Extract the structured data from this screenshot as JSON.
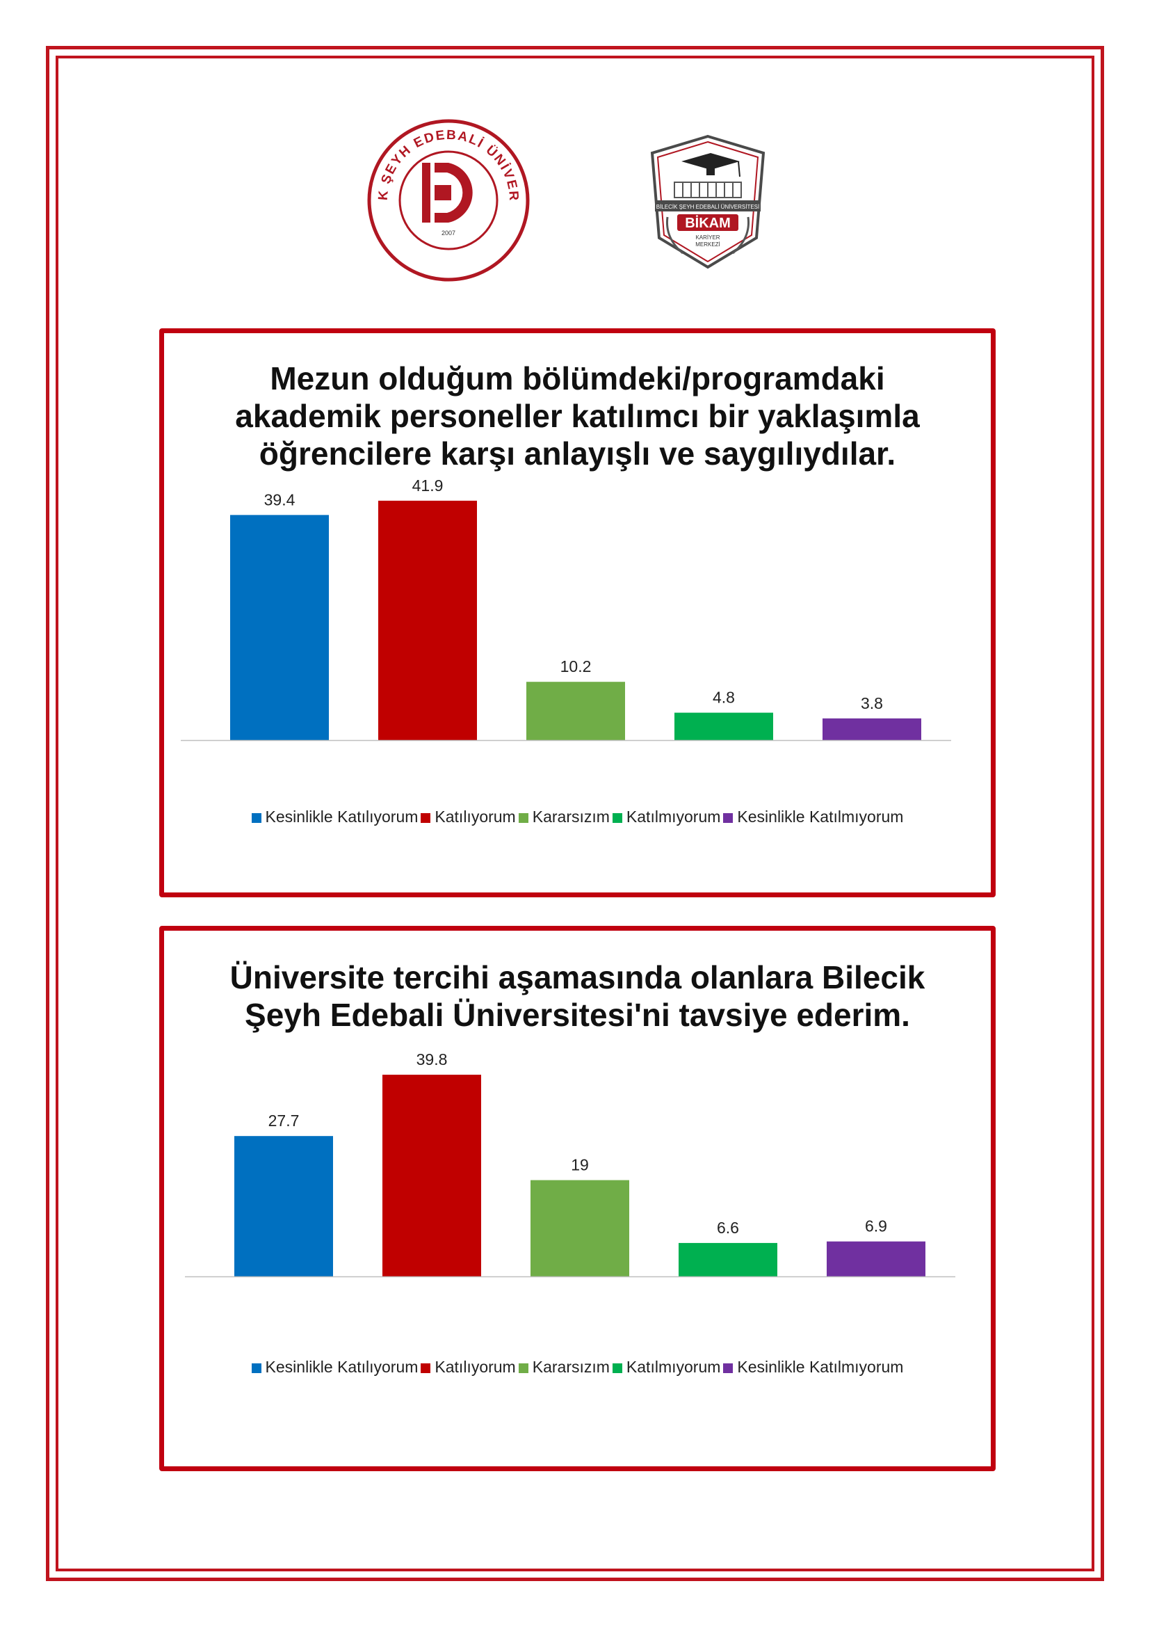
{
  "colors": {
    "frame": "#c0141e",
    "card_border": "#c0000f",
    "series": [
      "#0070c0",
      "#c00000",
      "#70ad47",
      "#00b050",
      "#7030a0"
    ]
  },
  "logos": {
    "university": {
      "ring_text": "BİLECİK ŞEYH EDEBALİ ÜNİVERSİTESİ",
      "year": "2007"
    },
    "career_center": {
      "banner_text": "BİLECİK ŞEYH EDEBALİ ÜNİVERSİTESİ",
      "name": "BİKAM",
      "subtitle_line1": "KARİYER",
      "subtitle_line2": "MERKEZİ"
    }
  },
  "chart_data": [
    {
      "type": "bar",
      "title_lines": [
        "Mezun olduğum bölümdeki/programdaki",
        "akademik personeller katılımcı bir yaklaşımla",
        "öğrencilere karşı anlayışlı ve saygılıydılar."
      ],
      "categories": [
        "Kesinlikle Katılıyorum",
        "Katılıyorum",
        "Kararsızım",
        "Katılmıyorum",
        "Kesinlikle Katılmıyorum"
      ],
      "values": [
        39.4,
        41.9,
        10.2,
        4.8,
        3.8
      ],
      "value_labels": [
        "39.4",
        "41.9",
        "10.2",
        "4.8",
        "3.8"
      ],
      "xlabel": "",
      "ylabel": "",
      "ylim": [
        0,
        45
      ],
      "grid": false,
      "legend_position": "bottom"
    },
    {
      "type": "bar",
      "title_lines": [
        "Üniversite tercihi aşamasında olanlara Bilecik",
        "Şeyh Edebali Üniversitesi'ni tavsiye ederim."
      ],
      "categories": [
        "Kesinlikle Katılıyorum",
        "Katılıyorum",
        "Kararsızım",
        "Katılmıyorum",
        "Kesinlikle Katılmıyorum"
      ],
      "values": [
        27.7,
        39.8,
        19,
        6.6,
        6.9
      ],
      "value_labels": [
        "27.7",
        "39.8",
        "19",
        "6.6",
        "6.9"
      ],
      "xlabel": "",
      "ylabel": "",
      "ylim": [
        0,
        45
      ],
      "grid": false,
      "legend_position": "bottom"
    }
  ]
}
